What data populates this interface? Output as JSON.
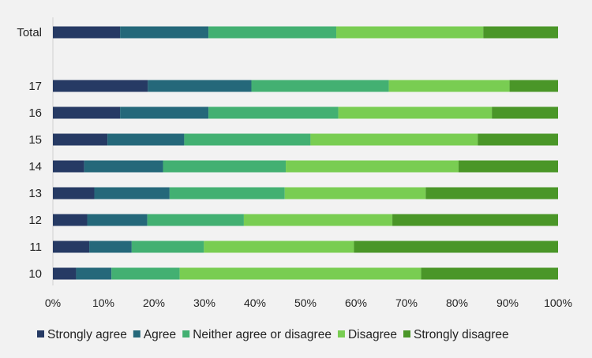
{
  "chart_data": {
    "type": "bar",
    "orientation": "horizontal",
    "stacked": "percent",
    "categories": [
      "Total",
      "17",
      "16",
      "15",
      "14",
      "13",
      "12",
      "11",
      "10"
    ],
    "series": [
      {
        "name": "Strongly agree",
        "color": "#263a64",
        "values": [
          13.3,
          18.8,
          13.3,
          10.8,
          6.2,
          8.2,
          6.8,
          7.2,
          4.6
        ]
      },
      {
        "name": "Agree",
        "color": "#25687a",
        "values": [
          17.5,
          20.5,
          17.5,
          15.2,
          15.6,
          14.9,
          11.9,
          8.4,
          7.0
        ]
      },
      {
        "name": "Neither agree or disagree",
        "color": "#43b072",
        "values": [
          25.3,
          27.2,
          25.7,
          25.0,
          24.3,
          22.8,
          19.1,
          14.3,
          13.5
        ]
      },
      {
        "name": "Disagree",
        "color": "#79cd52",
        "values": [
          29.1,
          23.9,
          30.4,
          33.1,
          34.2,
          27.9,
          29.4,
          29.7,
          47.8
        ]
      },
      {
        "name": "Strongly disagree",
        "color": "#4a9628",
        "values": [
          14.8,
          9.6,
          13.1,
          15.9,
          19.7,
          26.2,
          32.8,
          40.4,
          27.1
        ]
      }
    ],
    "xlim": [
      0,
      100
    ],
    "xticks": [
      "0%",
      "10%",
      "20%",
      "30%",
      "40%",
      "50%",
      "60%",
      "70%",
      "80%",
      "90%",
      "100%"
    ],
    "legend_position": "bottom",
    "grid": false
  }
}
